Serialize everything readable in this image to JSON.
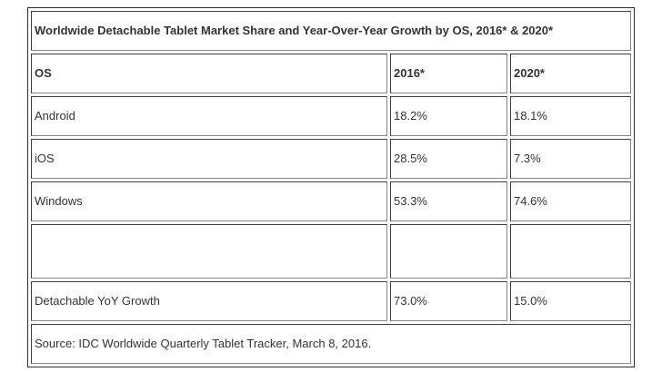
{
  "chart_data": {
    "type": "table",
    "title": "Worldwide Detachable Tablet Market Share and Year-Over-Year Growth by OS, 2016* & 2020*",
    "columns": [
      "OS",
      "2016*",
      "2020*"
    ],
    "rows": [
      [
        "Android",
        "18.2%",
        "18.1%"
      ],
      [
        "iOS",
        "28.5%",
        "7.3%"
      ],
      [
        "Windows",
        "53.3%",
        "74.6%"
      ],
      [
        "",
        "",
        ""
      ],
      [
        "Detachable YoY Growth",
        "73.0%",
        "15.0%"
      ]
    ],
    "source": "Source: IDC Worldwide Quarterly Tablet Tracker, March 8, 2016."
  }
}
